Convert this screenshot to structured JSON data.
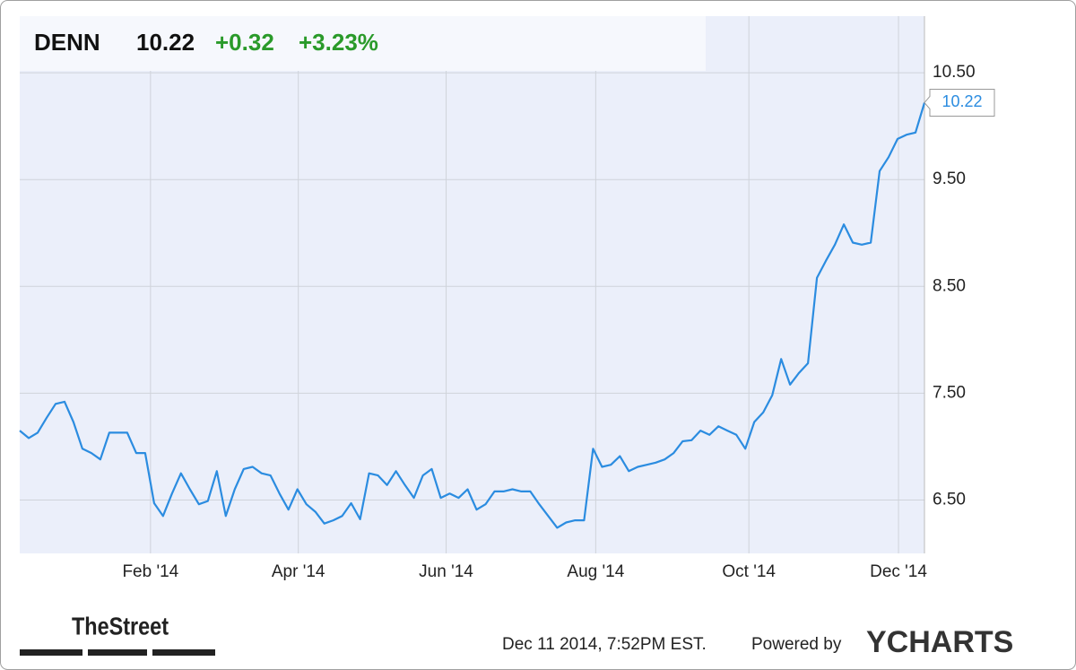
{
  "chart_data": {
    "type": "line",
    "ticker": "DENN",
    "change": "+0.32",
    "change_percent": "+3.23%",
    "series": [
      {
        "color": "#2b8ce0",
        "values": [
          7.15,
          7.08,
          7.13,
          7.27,
          7.4,
          7.42,
          7.23,
          6.98,
          6.94,
          6.88,
          7.13,
          7.13,
          7.13,
          6.94,
          6.94,
          6.47,
          6.35,
          6.56,
          6.75,
          6.6,
          6.46,
          6.49,
          6.77,
          6.35,
          6.6,
          6.79,
          6.81,
          6.75,
          6.73,
          6.56,
          6.41,
          6.6,
          6.46,
          6.39,
          6.28,
          6.31,
          6.35,
          6.47,
          6.32,
          6.75,
          6.73,
          6.64,
          6.77,
          6.64,
          6.52,
          6.73,
          6.79,
          6.52,
          6.56,
          6.52,
          6.6,
          6.41,
          6.46,
          6.58,
          6.58,
          6.6,
          6.58,
          6.58,
          6.46,
          6.35,
          6.24,
          6.29,
          6.31,
          6.31,
          6.98,
          6.81,
          6.83,
          6.91,
          6.77,
          6.81,
          6.83,
          6.85,
          6.88,
          6.94,
          7.05,
          7.06,
          7.15,
          7.11,
          7.19,
          7.15,
          7.11,
          6.98,
          7.23,
          7.32,
          7.48,
          7.82,
          7.58,
          7.69,
          7.78,
          8.58,
          8.74,
          8.89,
          9.08,
          8.91,
          8.89,
          8.91,
          9.58,
          9.71,
          9.88,
          9.92,
          9.94,
          10.22
        ]
      }
    ],
    "xlim": [
      0,
      101
    ],
    "xticks": [
      {
        "value": 14.6,
        "label": "Feb '14"
      },
      {
        "value": 31.1,
        "label": "Apr '14"
      },
      {
        "value": 47.6,
        "label": "Jun '14"
      },
      {
        "value": 64.3,
        "label": "Aug '14"
      },
      {
        "value": 81.4,
        "label": "Oct '14"
      },
      {
        "value": 98.1,
        "label": "Dec '14"
      }
    ],
    "ylim": [
      6.0,
      11.03
    ],
    "yticks": [
      {
        "value": 6.5,
        "label": "6.50"
      },
      {
        "value": 7.5,
        "label": "7.50"
      },
      {
        "value": 8.5,
        "label": "8.50"
      },
      {
        "value": 9.5,
        "label": "9.50"
      },
      {
        "value": 10.5,
        "label": "10.50"
      }
    ],
    "grid": true,
    "source_logo": "TheStreet",
    "timestamp": "Dec 11 2014, 7:52PM EST.",
    "powered_by": "Powered by",
    "brand": "YCHARTS"
  }
}
